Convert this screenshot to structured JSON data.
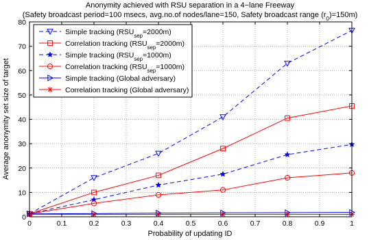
{
  "chart_data": {
    "type": "line",
    "title": "Anonymity achieved with RSU separation in a 4−lane Freeway",
    "subtitle_parts": [
      {
        "text": "(Safety broadcast period=100 msecs, avg.no.of nodes/lane=150, Safety broadcast range (r",
        "sub": false
      },
      {
        "text": "0",
        "sub": true
      },
      {
        "text": ")=150m)",
        "sub": false
      }
    ],
    "xlabel": "Probability of updating ID",
    "ylabel": "Average anonymity set size of target",
    "xlim": [
      0,
      1
    ],
    "ylim": [
      0,
      80
    ],
    "xticks": [
      "0",
      "0.1",
      "0.2",
      "0.3",
      "0.4",
      "0.5",
      "0.6",
      "0.7",
      "0.8",
      "0.9",
      "1"
    ],
    "yticks": [
      "0",
      "10",
      "20",
      "30",
      "40",
      "50",
      "60",
      "70",
      "80"
    ],
    "grid": true,
    "legend_position": "top-left",
    "x": [
      0,
      0.2,
      0.4,
      0.6,
      0.8,
      1.0
    ],
    "series": [
      {
        "name_parts": [
          {
            "text": "Simple tracking (RSU",
            "sub": false
          },
          {
            "text": "sep",
            "sub": true
          },
          {
            "text": "=2000m)",
            "sub": false
          }
        ],
        "color": "#0000ff",
        "dash": "dashed",
        "marker": "triangle-down",
        "values": [
          1.2,
          16,
          26,
          41,
          63,
          76.5
        ]
      },
      {
        "name_parts": [
          {
            "text": "Correlation tracking (RSU",
            "sub": false
          },
          {
            "text": "sep",
            "sub": true
          },
          {
            "text": "=2000m)",
            "sub": false
          }
        ],
        "color": "#ff0000",
        "dash": "solid",
        "marker": "square",
        "values": [
          1.2,
          10,
          17,
          28,
          40.5,
          45.5
        ]
      },
      {
        "name_parts": [
          {
            "text": "Simple tracking (RSU",
            "sub": false
          },
          {
            "text": "sep",
            "sub": true
          },
          {
            "text": "=1000m)",
            "sub": false
          }
        ],
        "color": "#0000ff",
        "dash": "dashed",
        "marker": "star",
        "values": [
          1.2,
          7,
          13,
          17.5,
          25.5,
          29.7
        ]
      },
      {
        "name_parts": [
          {
            "text": "Correlation tracking (RSU",
            "sub": false
          },
          {
            "text": "sep",
            "sub": true
          },
          {
            "text": "=1000m)",
            "sub": false
          }
        ],
        "color": "#ff0000",
        "dash": "solid",
        "marker": "circle",
        "values": [
          1.2,
          5.5,
          9,
          11,
          16,
          18
        ]
      },
      {
        "name_parts": [
          {
            "text": "Simple tracking (Global adversary)",
            "sub": false
          }
        ],
        "color": "#0000ff",
        "dash": "solid",
        "marker": "triangle-right",
        "values": [
          1.2,
          1.3,
          1.5,
          1.6,
          1.7,
          1.8
        ]
      },
      {
        "name_parts": [
          {
            "text": "Correlation tracking (Global adversary)",
            "sub": false
          }
        ],
        "color": "#ff0000",
        "dash": "solid",
        "marker": "asterisk",
        "values": [
          1.0,
          1.0,
          1.0,
          1.0,
          1.0,
          1.0
        ]
      }
    ]
  }
}
